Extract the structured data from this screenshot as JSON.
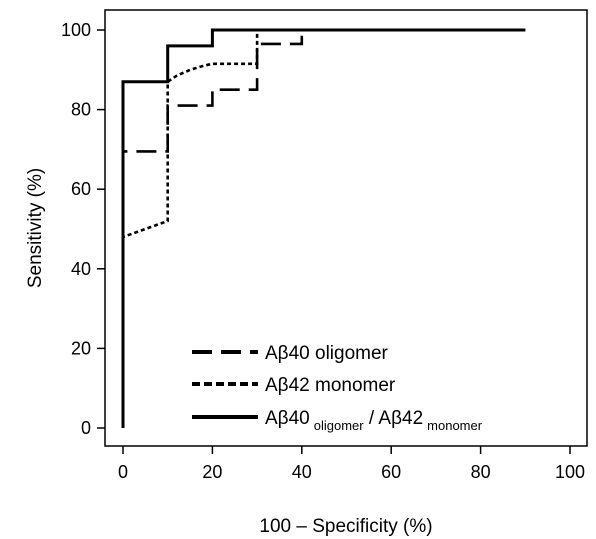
{
  "chart_data": {
    "type": "line",
    "title": "",
    "xlabel": "100 – Specificity (%)",
    "ylabel": "Sensitivity (%)",
    "xlim": [
      0,
      100
    ],
    "ylim": [
      0,
      100
    ],
    "xticks": [
      "0",
      "20",
      "40",
      "60",
      "80",
      "100"
    ],
    "yticks": [
      "0",
      "20",
      "40",
      "60",
      "80",
      "100"
    ],
    "grid": false,
    "legend_position": "bottom-right",
    "series": [
      {
        "name": "Aβ40 oligomer",
        "style": "dashed",
        "color": "#000000",
        "x": [
          0,
          0,
          10,
          10,
          20,
          20,
          30,
          30,
          40,
          40,
          90
        ],
        "y": [
          0,
          69.5,
          69.5,
          81,
          81,
          85,
          85,
          96.5,
          96.5,
          100,
          100
        ]
      },
      {
        "name": "Aβ42 monomer",
        "style": "dotted",
        "color": "#000000",
        "x": [
          0,
          0,
          10,
          10,
          12,
          15,
          18,
          20,
          30,
          30,
          90
        ],
        "y": [
          0,
          48,
          52,
          87,
          88.5,
          90,
          91,
          91.5,
          91.5,
          100,
          100
        ]
      },
      {
        "name": "Aβ40 oligomer / Aβ42 monomer",
        "legend_parts": {
          "base1": "Aβ40",
          "sub1": "oligomer",
          "sep": " / ",
          "base2": "Aβ42",
          "sub2": "monomer"
        },
        "style": "solid",
        "color": "#000000",
        "x": [
          0,
          0,
          10,
          10,
          20,
          20,
          90
        ],
        "y": [
          0,
          87,
          87,
          96,
          96,
          100,
          100
        ]
      }
    ]
  }
}
